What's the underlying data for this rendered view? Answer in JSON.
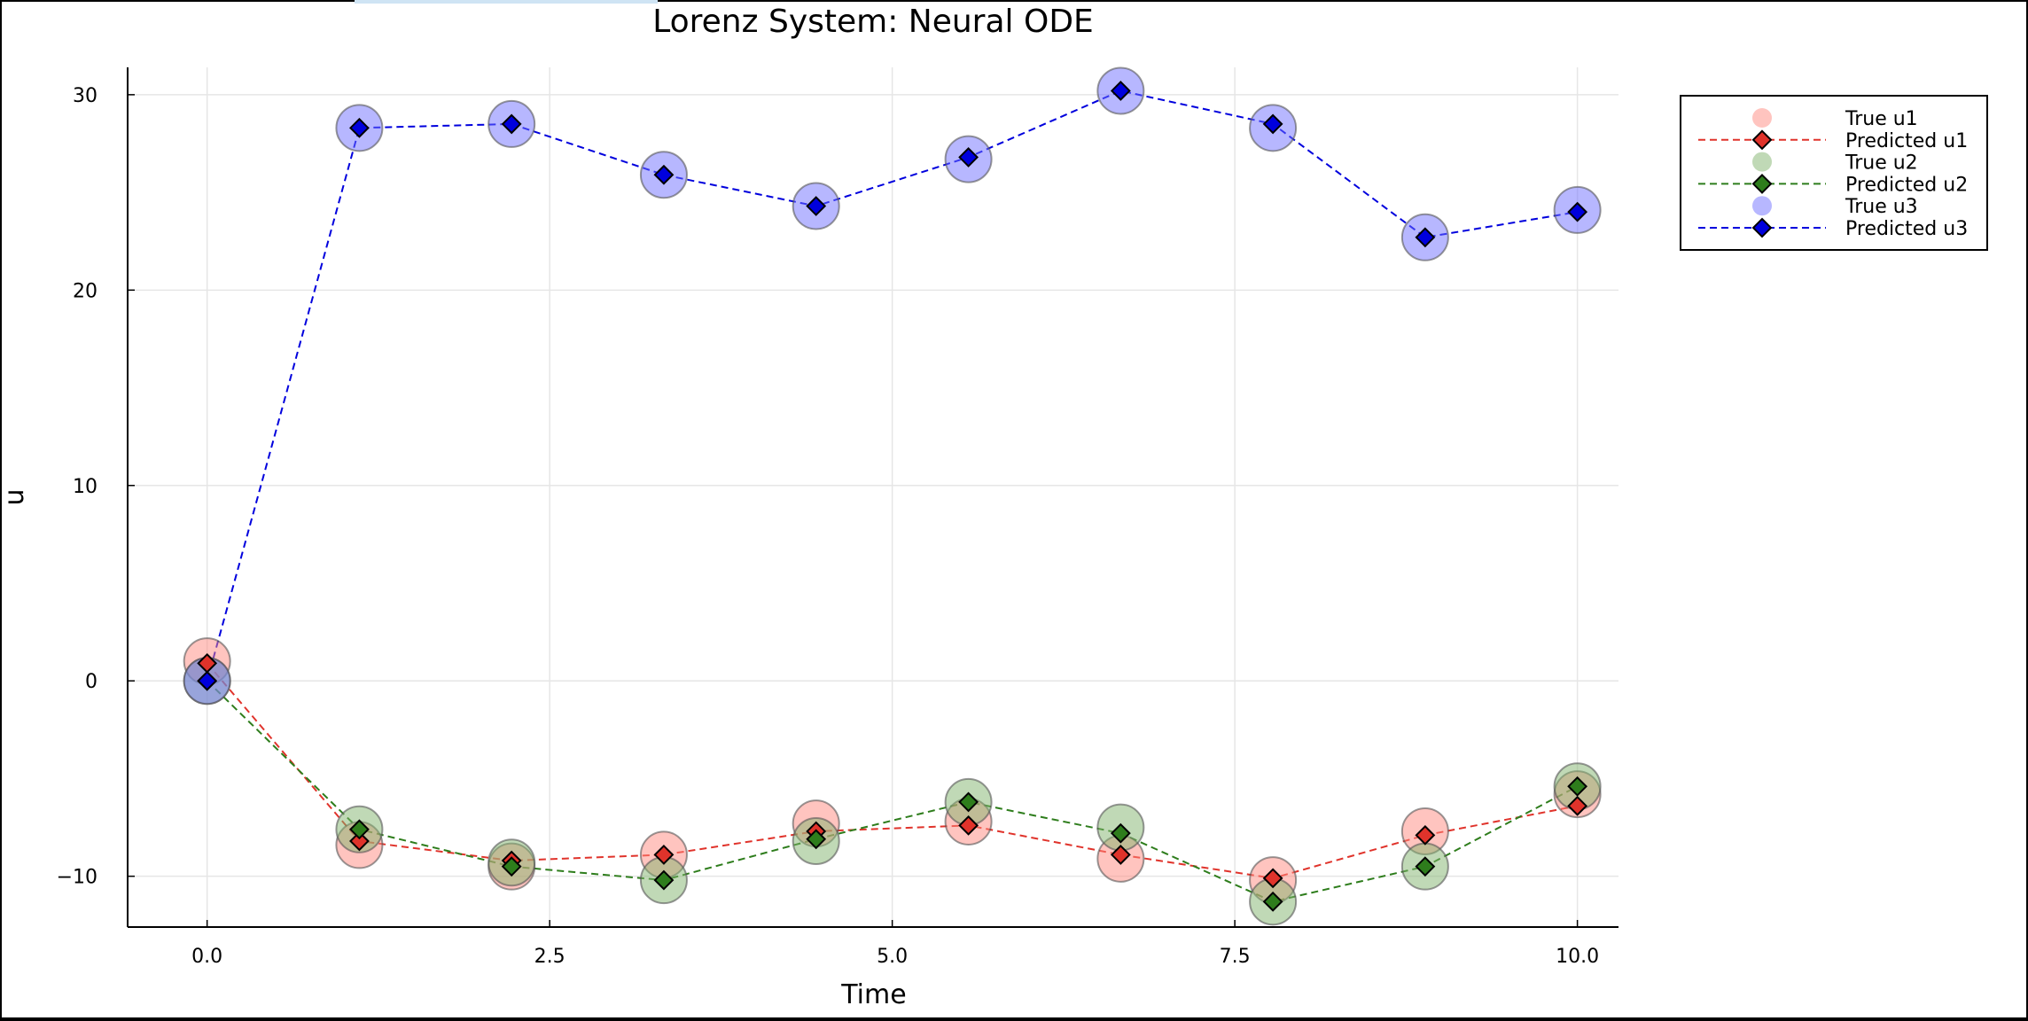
{
  "chart_data": {
    "type": "line",
    "title": "Lorenz System: Neural ODE",
    "xlabel": "Time",
    "ylabel": "u",
    "xlim": [
      -0.58,
      10.3
    ],
    "ylim": [
      -12.6,
      31.4
    ],
    "xticks": [
      0.0,
      2.5,
      5.0,
      7.5,
      10.0
    ],
    "xtick_labels": [
      "0.0",
      "2.5",
      "5.0",
      "7.5",
      "10.0"
    ],
    "yticks": [
      -10,
      0,
      10,
      20,
      30
    ],
    "ytick_labels": [
      "−10",
      "0",
      "10",
      "20",
      "30"
    ],
    "grid": true,
    "legend_position": "top-right (outside plot area)",
    "x": [
      0.0,
      1.111,
      2.222,
      3.333,
      4.444,
      5.556,
      6.667,
      7.778,
      8.889,
      10.0
    ],
    "series": [
      {
        "name": "True u1",
        "kind": "scatter",
        "color": "#ff8a80",
        "values": [
          1.0,
          -8.4,
          -9.5,
          -8.9,
          -7.3,
          -7.2,
          -9.1,
          -10.2,
          -7.7,
          -5.8
        ]
      },
      {
        "name": "Predicted u1",
        "kind": "line",
        "color": "#e0332b",
        "values": [
          0.9,
          -8.2,
          -9.2,
          -8.9,
          -7.7,
          -7.4,
          -8.9,
          -10.1,
          -7.9,
          -6.4
        ]
      },
      {
        "name": "True u2",
        "kind": "scatter",
        "color": "#82b36e",
        "values": [
          0.0,
          -7.6,
          -9.3,
          -10.2,
          -8.2,
          -6.2,
          -7.5,
          -11.3,
          -9.5,
          -5.4
        ]
      },
      {
        "name": "Predicted u2",
        "kind": "line",
        "color": "#2e7d1c",
        "values": [
          0.0,
          -7.6,
          -9.5,
          -10.2,
          -8.1,
          -6.2,
          -7.8,
          -11.3,
          -9.5,
          -5.4
        ]
      },
      {
        "name": "True u3",
        "kind": "scatter",
        "color": "#7070ff",
        "values": [
          0.0,
          28.3,
          28.5,
          25.9,
          24.3,
          26.7,
          30.2,
          28.3,
          22.7,
          24.1
        ]
      },
      {
        "name": "Predicted u3",
        "kind": "line",
        "color": "#0000dd",
        "values": [
          0.0,
          28.3,
          28.5,
          25.9,
          24.3,
          26.8,
          30.2,
          28.5,
          22.7,
          24.0
        ]
      }
    ]
  }
}
